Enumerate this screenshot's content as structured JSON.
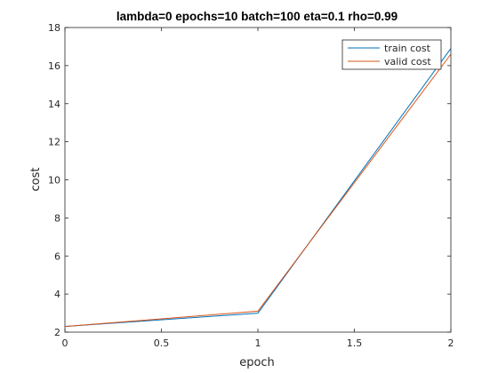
{
  "chart_data": {
    "type": "line",
    "title": "lambda=0 epochs=10 batch=100 eta=0.1 rho=0.99",
    "xlabel": "epoch",
    "ylabel": "cost",
    "xlim": [
      0,
      2
    ],
    "ylim": [
      2,
      18
    ],
    "xticks": [
      0,
      0.5,
      1,
      1.5,
      2
    ],
    "xtick_labels": [
      "0",
      "0.5",
      "1",
      "1.5",
      "2"
    ],
    "yticks": [
      2,
      4,
      6,
      8,
      10,
      12,
      14,
      16,
      18
    ],
    "ytick_labels": [
      "2",
      "4",
      "6",
      "8",
      "10",
      "12",
      "14",
      "16",
      "18"
    ],
    "grid": false,
    "legend_position": "top-right",
    "series": [
      {
        "name": "train cost",
        "color": "#0072bd",
        "x": [
          0,
          1,
          2
        ],
        "y": [
          2.3,
          3.0,
          16.9
        ]
      },
      {
        "name": "valid cost",
        "color": "#d95319",
        "x": [
          0,
          1,
          2
        ],
        "y": [
          2.3,
          3.1,
          16.6
        ]
      }
    ]
  }
}
